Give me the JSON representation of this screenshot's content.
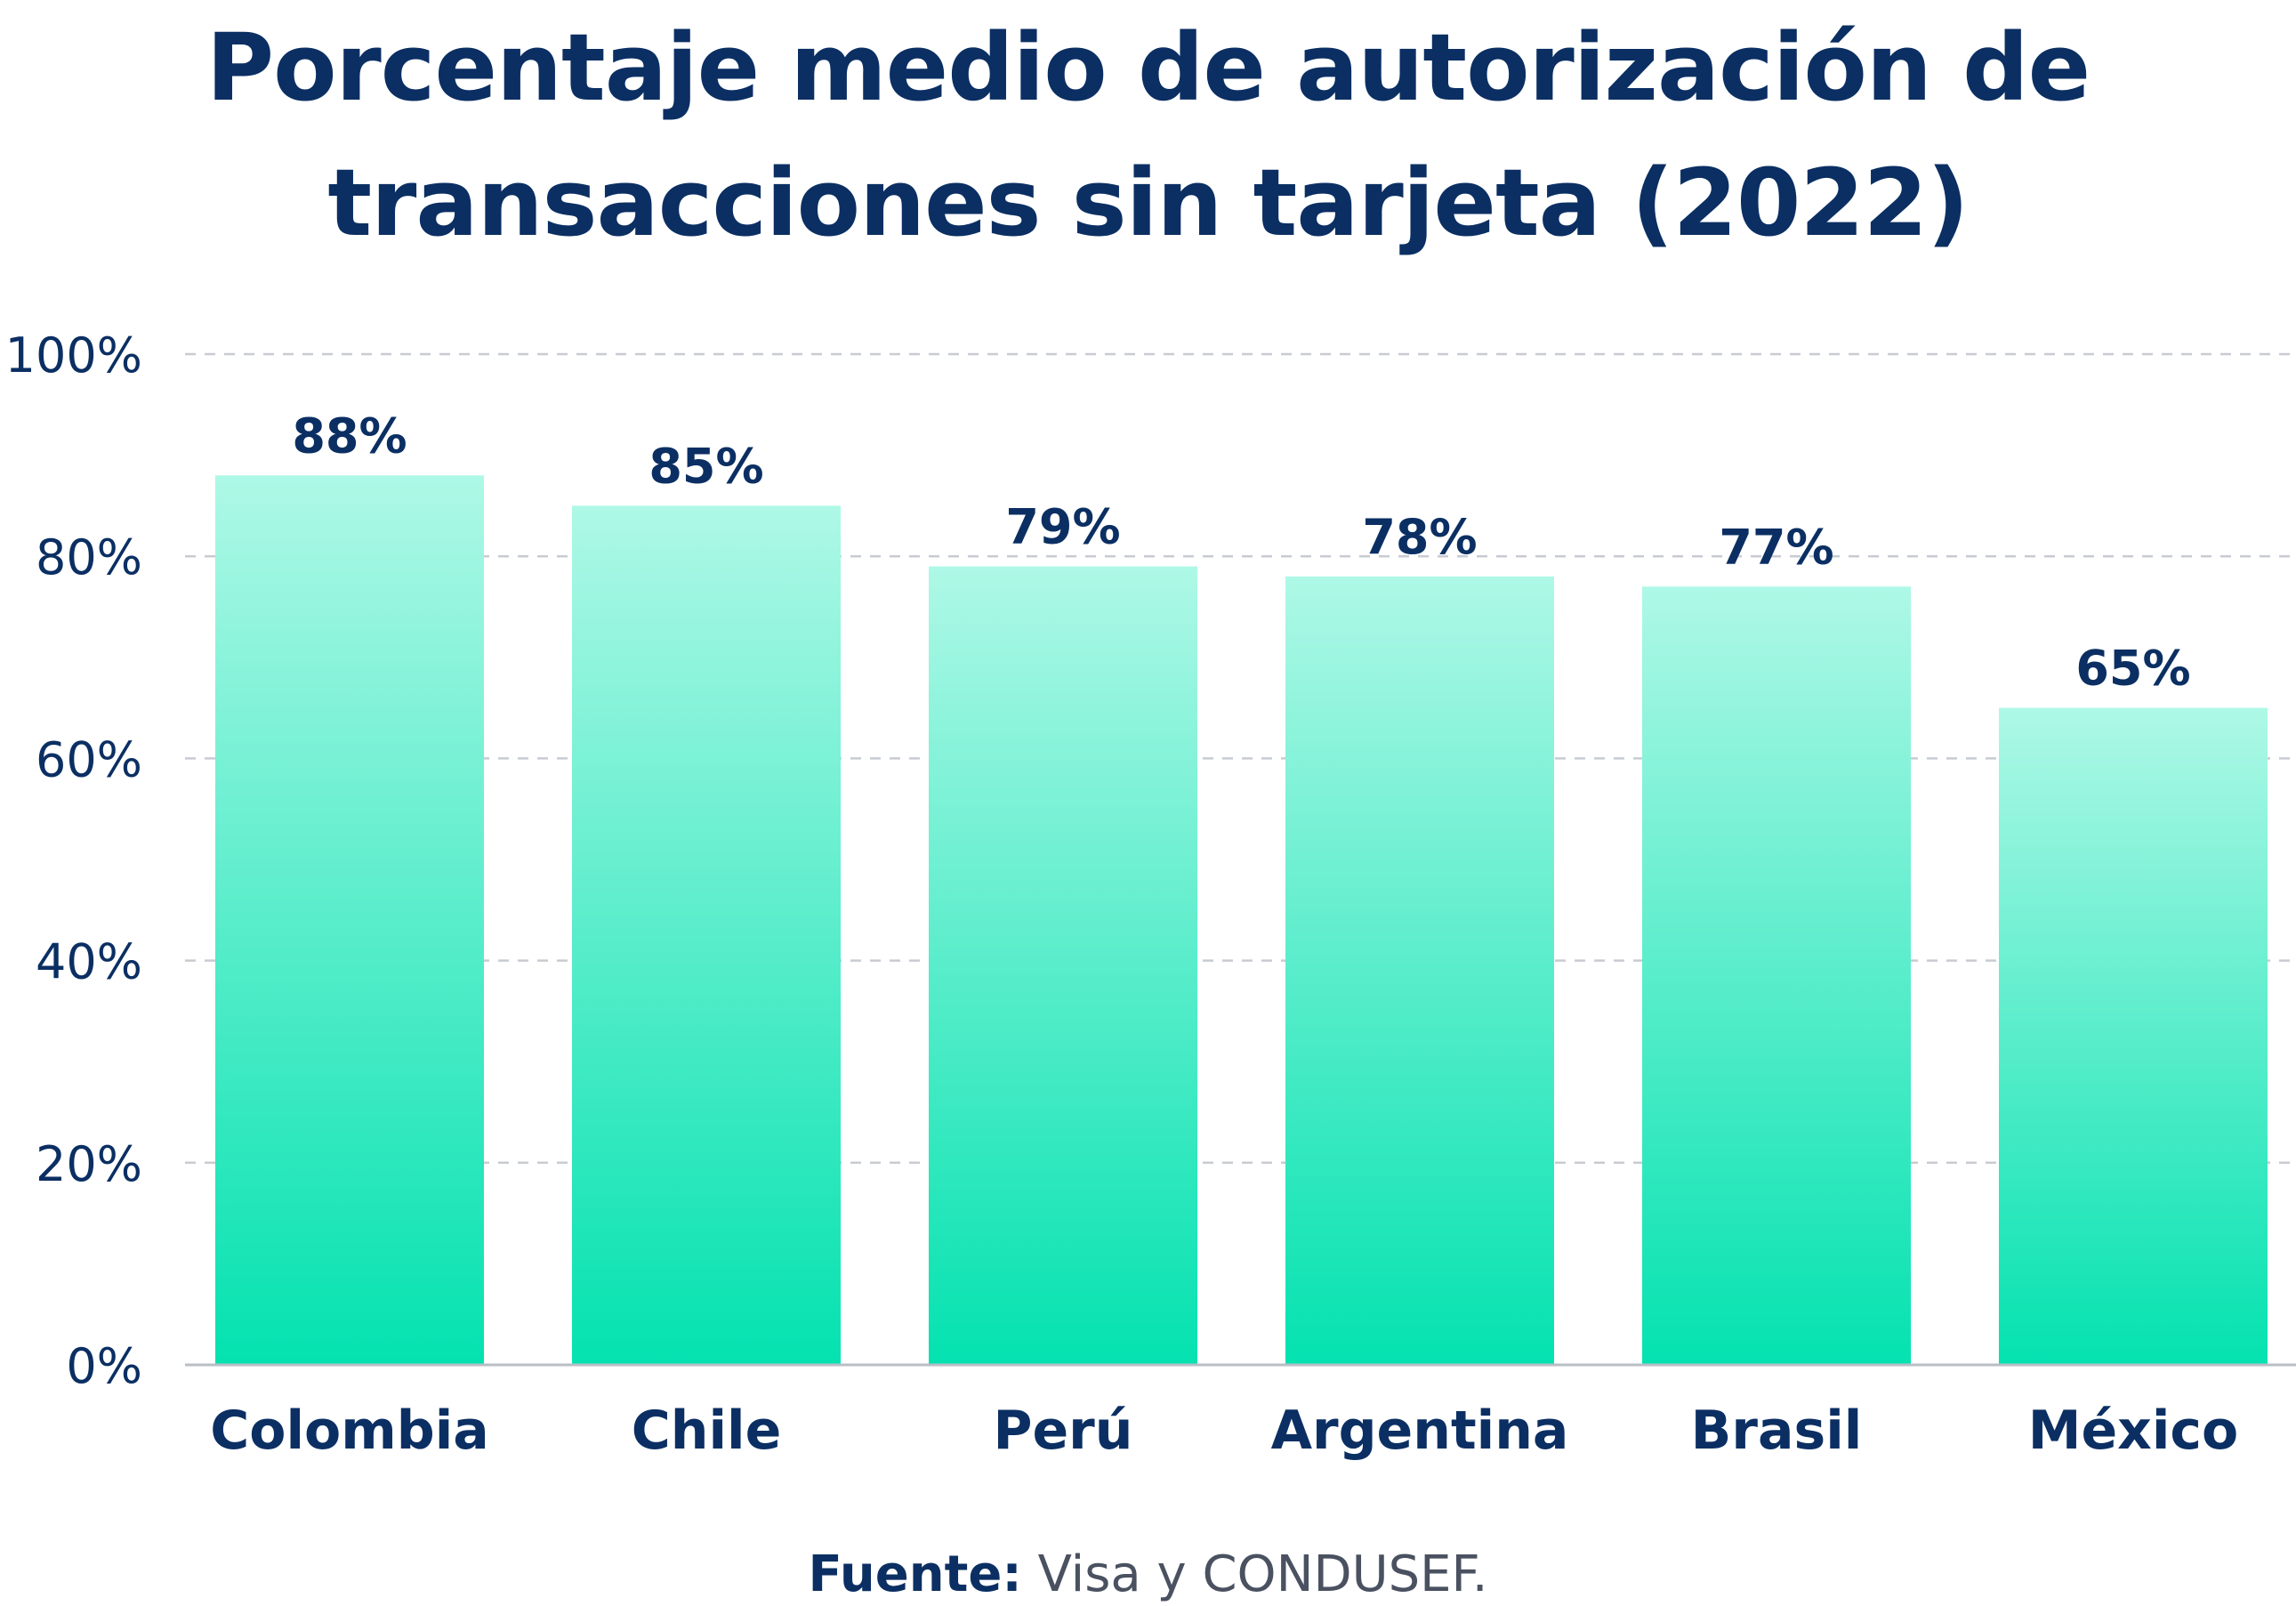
{
  "chart_data": {
    "type": "bar",
    "title_lines": [
      "Porcentaje medio de autorización de",
      "transacciones sin tarjeta (2022)"
    ],
    "categories": [
      "Colombia",
      "Chile",
      "Perú",
      "Argentina",
      "Brasil",
      "México"
    ],
    "values": [
      88,
      85,
      79,
      78,
      77,
      65
    ],
    "value_labels": [
      "88%",
      "85%",
      "79%",
      "78%",
      "77%",
      "65%"
    ],
    "ylim": [
      0,
      100
    ],
    "yticks": [
      0,
      20,
      40,
      60,
      80,
      100
    ],
    "ytick_labels": [
      "0%",
      "20%",
      "40%",
      "60%",
      "80%",
      "100%"
    ],
    "grid": "horizontal-dashed",
    "legend": "none",
    "colors": {
      "bar_top": "#aef8e6",
      "bar_bottom": "#04e2b0",
      "text": "#0b2f63",
      "grid": "#c8ccd2",
      "axis": "#b9bec6"
    }
  },
  "source": {
    "label": "Fuente:",
    "text": " Visa y CONDUSEF."
  }
}
